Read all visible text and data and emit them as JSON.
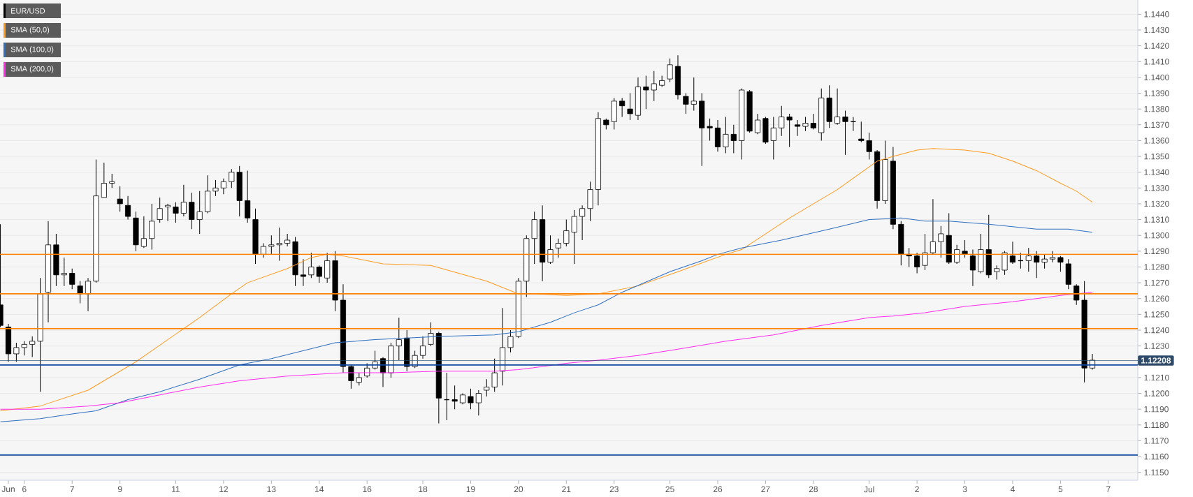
{
  "chart_data": {
    "type": "candlestick",
    "categories": [
      null,
      "Jun",
      null,
      "6",
      null,
      null,
      null,
      null,
      null,
      "7",
      null,
      null,
      null,
      null,
      null,
      "9",
      null,
      null,
      null,
      null,
      null,
      null,
      "11",
      null,
      null,
      null,
      null,
      null,
      "12",
      null,
      null,
      null,
      null,
      null,
      "13",
      null,
      null,
      null,
      null,
      null,
      "14",
      null,
      null,
      null,
      null,
      null,
      "16",
      null,
      null,
      null,
      null,
      null,
      null,
      "18",
      null,
      null,
      null,
      null,
      null,
      "19",
      null,
      null,
      null,
      null,
      null,
      "20",
      null,
      null,
      null,
      null,
      null,
      "21",
      null,
      null,
      null,
      null,
      null,
      "23",
      null,
      null,
      null,
      null,
      null,
      null,
      "25",
      null,
      null,
      null,
      null,
      null,
      "26",
      null,
      null,
      null,
      null,
      null,
      "27",
      null,
      null,
      null,
      null,
      null,
      "28",
      null,
      null,
      null,
      null,
      null,
      null,
      "Jul",
      null,
      null,
      null,
      null,
      null,
      "2",
      null,
      null,
      null,
      null,
      null,
      "3",
      null,
      null,
      null,
      null,
      null,
      "4",
      null,
      null,
      null,
      null,
      null,
      "5",
      null,
      null,
      null,
      null,
      null,
      "7"
    ],
    "series": [
      {
        "name": "EUR/USD",
        "color": "#000000",
        "ohlc": [
          [
            1.1256,
            1.1307,
            1.1242,
            1.1243
          ],
          [
            1.1242,
            1.1244,
            1.122,
            1.1225
          ],
          [
            1.1225,
            1.1232,
            1.122,
            1.1229
          ],
          [
            1.1229,
            1.1233,
            1.1224,
            1.1231
          ],
          [
            1.1231,
            1.1236,
            1.1223,
            1.1233
          ],
          [
            1.1233,
            1.1273,
            1.1201,
            1.1263
          ],
          [
            1.1264,
            1.1309,
            1.1245,
            1.1294
          ],
          [
            1.1294,
            1.1301,
            1.1268,
            1.1275
          ],
          [
            1.1275,
            1.1286,
            1.1268,
            1.1276
          ],
          [
            1.1276,
            1.1279,
            1.1266,
            1.1269
          ],
          [
            1.1268,
            1.1271,
            1.1257,
            1.1263
          ],
          [
            1.1263,
            1.1273,
            1.1252,
            1.1271
          ],
          [
            1.1271,
            1.1348,
            1.127,
            1.1325
          ],
          [
            1.1324,
            1.1346,
            1.1324,
            1.1333
          ],
          [
            1.1333,
            1.1339,
            1.133,
            1.1334
          ],
          [
            1.1323,
            1.1331,
            1.1315,
            1.132
          ],
          [
            1.1319,
            1.1325,
            1.131,
            1.1312
          ],
          [
            1.1311,
            1.1315,
            1.129,
            1.1294
          ],
          [
            1.1293,
            1.1312,
            1.1292,
            1.1298
          ],
          [
            1.1298,
            1.132,
            1.1291,
            1.1309
          ],
          [
            1.131,
            1.1324,
            1.1308,
            1.1317
          ],
          [
            1.1318,
            1.132,
            1.1309,
            1.1319
          ],
          [
            1.1318,
            1.1321,
            1.1308,
            1.1314
          ],
          [
            1.1314,
            1.1332,
            1.1312,
            1.1321
          ],
          [
            1.1321,
            1.1327,
            1.1304,
            1.131
          ],
          [
            1.131,
            1.1328,
            1.1301,
            1.1315
          ],
          [
            1.1315,
            1.1338,
            1.1314,
            1.1328
          ],
          [
            1.1328,
            1.1335,
            1.1325,
            1.133
          ],
          [
            1.133,
            1.1336,
            1.1326,
            1.1334
          ],
          [
            1.1334,
            1.1342,
            1.133,
            1.134
          ],
          [
            1.134,
            1.1344,
            1.1312,
            1.1322
          ],
          [
            1.1322,
            1.1341,
            1.1308,
            1.1311
          ],
          [
            1.131,
            1.1317,
            1.1282,
            1.1288
          ],
          [
            1.1288,
            1.1295,
            1.1286,
            1.1293
          ],
          [
            1.1293,
            1.13,
            1.1288,
            1.1294
          ],
          [
            1.1294,
            1.1305,
            1.1284,
            1.1295
          ],
          [
            1.1295,
            1.1301,
            1.1293,
            1.1297
          ],
          [
            1.1296,
            1.1299,
            1.1268,
            1.1275
          ],
          [
            1.1275,
            1.1285,
            1.1268,
            1.1274
          ],
          [
            1.1275,
            1.1289,
            1.1273,
            1.128
          ],
          [
            1.128,
            1.1281,
            1.127,
            1.1274
          ],
          [
            1.1273,
            1.1289,
            1.127,
            1.1284
          ],
          [
            1.1284,
            1.129,
            1.1252,
            1.1259
          ],
          [
            1.1259,
            1.1269,
            1.1213,
            1.1217
          ],
          [
            1.1217,
            1.1218,
            1.1203,
            1.1208
          ],
          [
            1.1207,
            1.1213,
            1.1205,
            1.121
          ],
          [
            1.1211,
            1.1219,
            1.121,
            1.1216
          ],
          [
            1.1216,
            1.1227,
            1.1215,
            1.122
          ],
          [
            1.1222,
            1.1223,
            1.1204,
            1.1213
          ],
          [
            1.1213,
            1.1232,
            1.121,
            1.123
          ],
          [
            1.123,
            1.1248,
            1.1221,
            1.1234
          ],
          [
            1.1235,
            1.124,
            1.1214,
            1.1217
          ],
          [
            1.1217,
            1.1227,
            1.1216,
            1.1224
          ],
          [
            1.1224,
            1.1236,
            1.1222,
            1.123
          ],
          [
            1.1231,
            1.1245,
            1.123,
            1.1238
          ],
          [
            1.1238,
            1.1239,
            1.1181,
            1.1197
          ],
          [
            1.1196,
            1.1213,
            1.1183,
            1.1196
          ],
          [
            1.1196,
            1.1205,
            1.119,
            1.1195
          ],
          [
            1.1194,
            1.12,
            1.1193,
            1.1199
          ],
          [
            1.1198,
            1.1203,
            1.119,
            1.1194
          ],
          [
            1.1194,
            1.1202,
            1.1186,
            1.12
          ],
          [
            1.1202,
            1.1209,
            1.1198,
            1.1204
          ],
          [
            1.1204,
            1.1222,
            1.1201,
            1.1213
          ],
          [
            1.1214,
            1.1254,
            1.1205,
            1.1229
          ],
          [
            1.1229,
            1.124,
            1.1226,
            1.1236
          ],
          [
            1.1236,
            1.1273,
            1.1235,
            1.1271
          ],
          [
            1.1271,
            1.13,
            1.1261,
            1.1298
          ],
          [
            1.1298,
            1.1315,
            1.1282,
            1.131
          ],
          [
            1.131,
            1.1319,
            1.1271,
            1.1283
          ],
          [
            1.1283,
            1.13,
            1.1282,
            1.1291
          ],
          [
            1.1292,
            1.1298,
            1.1286,
            1.1295
          ],
          [
            1.1295,
            1.131,
            1.1293,
            1.1303
          ],
          [
            1.1302,
            1.1316,
            1.1282,
            1.1312
          ],
          [
            1.1312,
            1.1319,
            1.1297,
            1.1317
          ],
          [
            1.1317,
            1.1334,
            1.1309,
            1.1329
          ],
          [
            1.1329,
            1.1378,
            1.1319,
            1.1374
          ],
          [
            1.1373,
            1.1374,
            1.1367,
            1.137
          ],
          [
            1.1372,
            1.1387,
            1.1367,
            1.1385
          ],
          [
            1.1385,
            1.1387,
            1.1375,
            1.1382
          ],
          [
            1.138,
            1.139,
            1.1373,
            1.1377
          ],
          [
            1.1376,
            1.14,
            1.1373,
            1.1394
          ],
          [
            1.1394,
            1.1401,
            1.138,
            1.1392
          ],
          [
            1.1392,
            1.1404,
            1.1385,
            1.1396
          ],
          [
            1.1395,
            1.1401,
            1.1394,
            1.1398
          ],
          [
            1.1399,
            1.1412,
            1.1397,
            1.1408
          ],
          [
            1.1407,
            1.1414,
            1.1386,
            1.1389
          ],
          [
            1.1388,
            1.139,
            1.1377,
            1.1383
          ],
          [
            1.1383,
            1.14,
            1.1379,
            1.1385
          ],
          [
            1.1385,
            1.139,
            1.1344,
            1.1368
          ],
          [
            1.1369,
            1.1374,
            1.136,
            1.1368
          ],
          [
            1.1368,
            1.1373,
            1.1353,
            1.1356
          ],
          [
            1.1356,
            1.1375,
            1.1352,
            1.1364
          ],
          [
            1.1364,
            1.137,
            1.1352,
            1.136
          ],
          [
            1.136,
            1.1393,
            1.1348,
            1.1392
          ],
          [
            1.1391,
            1.1392,
            1.1365,
            1.1366
          ],
          [
            1.1365,
            1.1377,
            1.1364,
            1.1373
          ],
          [
            1.1374,
            1.1375,
            1.1358,
            1.1359
          ],
          [
            1.136,
            1.1375,
            1.1348,
            1.1368
          ],
          [
            1.1368,
            1.1382,
            1.1363,
            1.1375
          ],
          [
            1.1375,
            1.1377,
            1.1356,
            1.1373
          ],
          [
            1.137,
            1.1373,
            1.1363,
            1.1369
          ],
          [
            1.1369,
            1.1375,
            1.1366,
            1.1371
          ],
          [
            1.1371,
            1.1377,
            1.1367,
            1.1368
          ],
          [
            1.1365,
            1.1393,
            1.136,
            1.1387
          ],
          [
            1.1387,
            1.1395,
            1.1368,
            1.1372
          ],
          [
            1.1371,
            1.1393,
            1.137,
            1.1375
          ],
          [
            1.1375,
            1.1379,
            1.1351,
            1.1372
          ],
          [
            1.1372,
            1.1375,
            1.1366,
            1.1372
          ],
          [
            1.1361,
            1.1372,
            1.1359,
            1.136
          ],
          [
            1.136,
            1.1365,
            1.1348,
            1.1353
          ],
          [
            1.1353,
            1.1354,
            1.1317,
            1.1322
          ],
          [
            1.1322,
            1.136,
            1.132,
            1.1348
          ],
          [
            1.1347,
            1.1356,
            1.1304,
            1.1307
          ],
          [
            1.1307,
            1.1309,
            1.1281,
            1.1288
          ],
          [
            1.1288,
            1.1292,
            1.128,
            1.1287
          ],
          [
            1.1287,
            1.1289,
            1.1276,
            1.128
          ],
          [
            1.1281,
            1.1301,
            1.1278,
            1.1289
          ],
          [
            1.1289,
            1.1323,
            1.1288,
            1.1296
          ],
          [
            1.1296,
            1.1306,
            1.1286,
            1.1301
          ],
          [
            1.13,
            1.1314,
            1.1282,
            1.1283
          ],
          [
            1.1283,
            1.1294,
            1.1282,
            1.1291
          ],
          [
            1.129,
            1.1297,
            1.1286,
            1.1288
          ],
          [
            1.1287,
            1.1291,
            1.1268,
            1.1278
          ],
          [
            1.1277,
            1.1301,
            1.1276,
            1.1291
          ],
          [
            1.1291,
            1.1313,
            1.1273,
            1.1275
          ],
          [
            1.1277,
            1.1281,
            1.1272,
            1.1279
          ],
          [
            1.1278,
            1.129,
            1.1275,
            1.1289
          ],
          [
            1.1287,
            1.1296,
            1.1282,
            1.1283
          ],
          [
            1.1284,
            1.1289,
            1.1279,
            1.1284
          ],
          [
            1.1284,
            1.1292,
            1.1277,
            1.1287
          ],
          [
            1.1287,
            1.129,
            1.1273,
            1.1283
          ],
          [
            1.1283,
            1.1288,
            1.1279,
            1.1285
          ],
          [
            1.1285,
            1.129,
            1.1283,
            1.1286
          ],
          [
            1.1286,
            1.1287,
            1.1277,
            1.1283
          ],
          [
            1.1282,
            1.1285,
            1.1266,
            1.1269
          ],
          [
            1.1268,
            1.1269,
            1.1256,
            1.1259
          ],
          [
            1.1259,
            1.1271,
            1.1207,
            1.1216
          ],
          [
            1.1216,
            1.1225,
            1.1215,
            1.1221
          ],
          null,
          null
        ]
      },
      {
        "type": "line",
        "name": "SMA (50,0)",
        "color": "#ff9a1f",
        "values": [
          1.1189,
          null,
          null,
          null,
          null,
          1.1192,
          null,
          null,
          null,
          null,
          null,
          1.1202,
          null,
          null,
          null,
          null,
          null,
          1.122,
          null,
          null,
          null,
          null,
          null,
          1.1241,
          null,
          1.1248,
          null,
          null,
          null,
          1.1263,
          null,
          1.127,
          null,
          null,
          null,
          null,
          1.1279,
          null,
          null,
          1.1286,
          null,
          1.1288,
          null,
          1.1287,
          null,
          null,
          null,
          null,
          1.1282,
          null,
          null,
          null,
          null,
          null,
          1.1281,
          null,
          null,
          null,
          null,
          null,
          null,
          1.1271,
          null,
          null,
          null,
          1.1263,
          null,
          1.1263,
          null,
          null,
          null,
          1.1262,
          null,
          null,
          null,
          1.1263,
          null,
          null,
          null,
          null,
          1.1268,
          null,
          null,
          null,
          null,
          1.1277,
          null,
          null,
          null,
          null,
          null,
          1.1288,
          null,
          1.1291,
          null,
          null,
          null,
          null,
          null,
          1.1311,
          null,
          null,
          null,
          null,
          null,
          1.1329,
          null,
          null,
          null,
          null,
          1.1347,
          null,
          1.135,
          null,
          null,
          1.1354,
          null,
          1.1355,
          null,
          null,
          null,
          1.1354,
          null,
          null,
          1.1352,
          null,
          null,
          1.1347,
          null,
          null,
          1.1341,
          null,
          null,
          1.1333,
          null,
          1.1328,
          null,
          1.1321,
          null,
          null
        ]
      },
      {
        "type": "line",
        "name": "SMA (100,0)",
        "color": "#2f6fc2",
        "values": [
          1.1182,
          null,
          null,
          null,
          null,
          1.1184,
          null,
          null,
          null,
          1.1187,
          null,
          null,
          1.1189,
          null,
          null,
          null,
          1.1196,
          null,
          null,
          null,
          1.1201,
          null,
          null,
          null,
          null,
          1.1209,
          null,
          null,
          null,
          null,
          1.1218,
          null,
          null,
          null,
          1.1222,
          null,
          null,
          null,
          null,
          null,
          null,
          null,
          1.1232,
          null,
          null,
          null,
          null,
          1.1234,
          null,
          null,
          null,
          null,
          null,
          null,
          null,
          1.1236,
          null,
          null,
          null,
          null,
          null,
          null,
          1.1237,
          null,
          null,
          1.1239,
          null,
          null,
          null,
          1.1245,
          null,
          null,
          1.1251,
          null,
          null,
          1.1256,
          null,
          null,
          1.1264,
          null,
          null,
          null,
          null,
          null,
          1.1277,
          null,
          null,
          null,
          1.1284,
          null,
          1.1288,
          null,
          null,
          1.1292,
          null,
          null,
          null,
          null,
          1.1297,
          null,
          null,
          null,
          null,
          null,
          1.1304,
          null,
          null,
          null,
          null,
          1.131,
          null,
          null,
          null,
          1.1311,
          null,
          null,
          1.1309,
          null,
          null,
          1.1309,
          null,
          null,
          null,
          null,
          1.1307,
          null,
          null,
          null,
          null,
          null,
          1.1304,
          null,
          null,
          null,
          1.1304,
          null,
          null,
          1.1302,
          null,
          null
        ]
      },
      {
        "type": "line",
        "name": "SMA (200,0)",
        "color": "#ff2cf0",
        "values": [
          1.119,
          null,
          null,
          null,
          null,
          1.119,
          null,
          null,
          null,
          null,
          null,
          1.1192,
          null,
          null,
          null,
          1.1194,
          null,
          null,
          null,
          null,
          1.1199,
          null,
          null,
          null,
          null,
          1.1204,
          null,
          null,
          null,
          null,
          1.1208,
          null,
          null,
          null,
          null,
          null,
          1.1211,
          null,
          null,
          null,
          null,
          null,
          null,
          1.1213,
          null,
          null,
          null,
          null,
          null,
          1.1213,
          null,
          null,
          null,
          null,
          null,
          1.1214,
          null,
          null,
          null,
          null,
          null,
          null,
          1.1214,
          null,
          null,
          1.1215,
          null,
          null,
          null,
          null,
          null,
          1.1219,
          null,
          null,
          null,
          1.1221,
          null,
          null,
          null,
          null,
          1.1224,
          null,
          null,
          null,
          null,
          1.1228,
          null,
          null,
          null,
          null,
          null,
          1.1233,
          null,
          null,
          null,
          null,
          null,
          1.1237,
          null,
          null,
          null,
          null,
          null,
          1.1243,
          null,
          null,
          null,
          null,
          null,
          1.1248,
          null,
          null,
          1.1249,
          null,
          null,
          null,
          1.1251,
          null,
          null,
          null,
          null,
          1.1255,
          null,
          null,
          null,
          null,
          null,
          1.1258,
          null,
          null,
          null,
          null,
          null,
          1.1262,
          null,
          null,
          null,
          1.1264,
          null,
          null
        ]
      }
    ],
    "ylim": [
      1.1145,
      1.1449
    ],
    "yticks": [
      {
        "value": 1.115,
        "label": "1.1150"
      },
      {
        "value": 1.116,
        "label": "1.1160"
      },
      {
        "value": 1.117,
        "label": "1.1170"
      },
      {
        "value": 1.118,
        "label": "1.1180"
      },
      {
        "value": 1.119,
        "label": "1.1190"
      },
      {
        "value": 1.12,
        "label": "1.1200"
      },
      {
        "value": 1.121,
        "label": "1.1210"
      },
      {
        "value": 1.122,
        "label": null
      },
      {
        "value": 1.123,
        "label": "1.1230"
      },
      {
        "value": 1.124,
        "label": "1.1240"
      },
      {
        "value": 1.125,
        "label": "1.1250"
      },
      {
        "value": 1.126,
        "label": "1.1260"
      },
      {
        "value": 1.127,
        "label": "1.1270"
      },
      {
        "value": 1.128,
        "label": "1.1280"
      },
      {
        "value": 1.129,
        "label": "1.1290"
      },
      {
        "value": 1.13,
        "label": "1.1300"
      },
      {
        "value": 1.131,
        "label": "1.1310"
      },
      {
        "value": 1.132,
        "label": "1.1320"
      },
      {
        "value": 1.133,
        "label": "1.1330"
      },
      {
        "value": 1.134,
        "label": "1.1340"
      },
      {
        "value": 1.135,
        "label": "1.1350"
      },
      {
        "value": 1.136,
        "label": "1.1360"
      },
      {
        "value": 1.137,
        "label": "1.1370"
      },
      {
        "value": 1.138,
        "label": "1.1380"
      },
      {
        "value": 1.139,
        "label": "1.1390"
      },
      {
        "value": 1.14,
        "label": "1.1400"
      },
      {
        "value": 1.141,
        "label": "1.1410"
      },
      {
        "value": 1.142,
        "label": "1.1420"
      },
      {
        "value": 1.143,
        "label": "1.1430"
      },
      {
        "value": 1.144,
        "label": "1.1440"
      }
    ],
    "ref_lines": [
      {
        "axis": "y",
        "value": 1.1288,
        "color": "#ff8000"
      },
      {
        "axis": "y",
        "value": 1.1263,
        "color": "#ff8000"
      },
      {
        "axis": "y",
        "value": 1.1241,
        "color": "#ff8000"
      },
      {
        "axis": "y",
        "value": 1.1218,
        "color": "#0d47a1"
      },
      {
        "axis": "y",
        "value": 1.1161,
        "color": "#0d47a1"
      },
      {
        "axis": "y",
        "value": 1.12208,
        "label": "1.12208",
        "color": "#2e4a68"
      }
    ],
    "grid": "y",
    "legend": "top left"
  }
}
